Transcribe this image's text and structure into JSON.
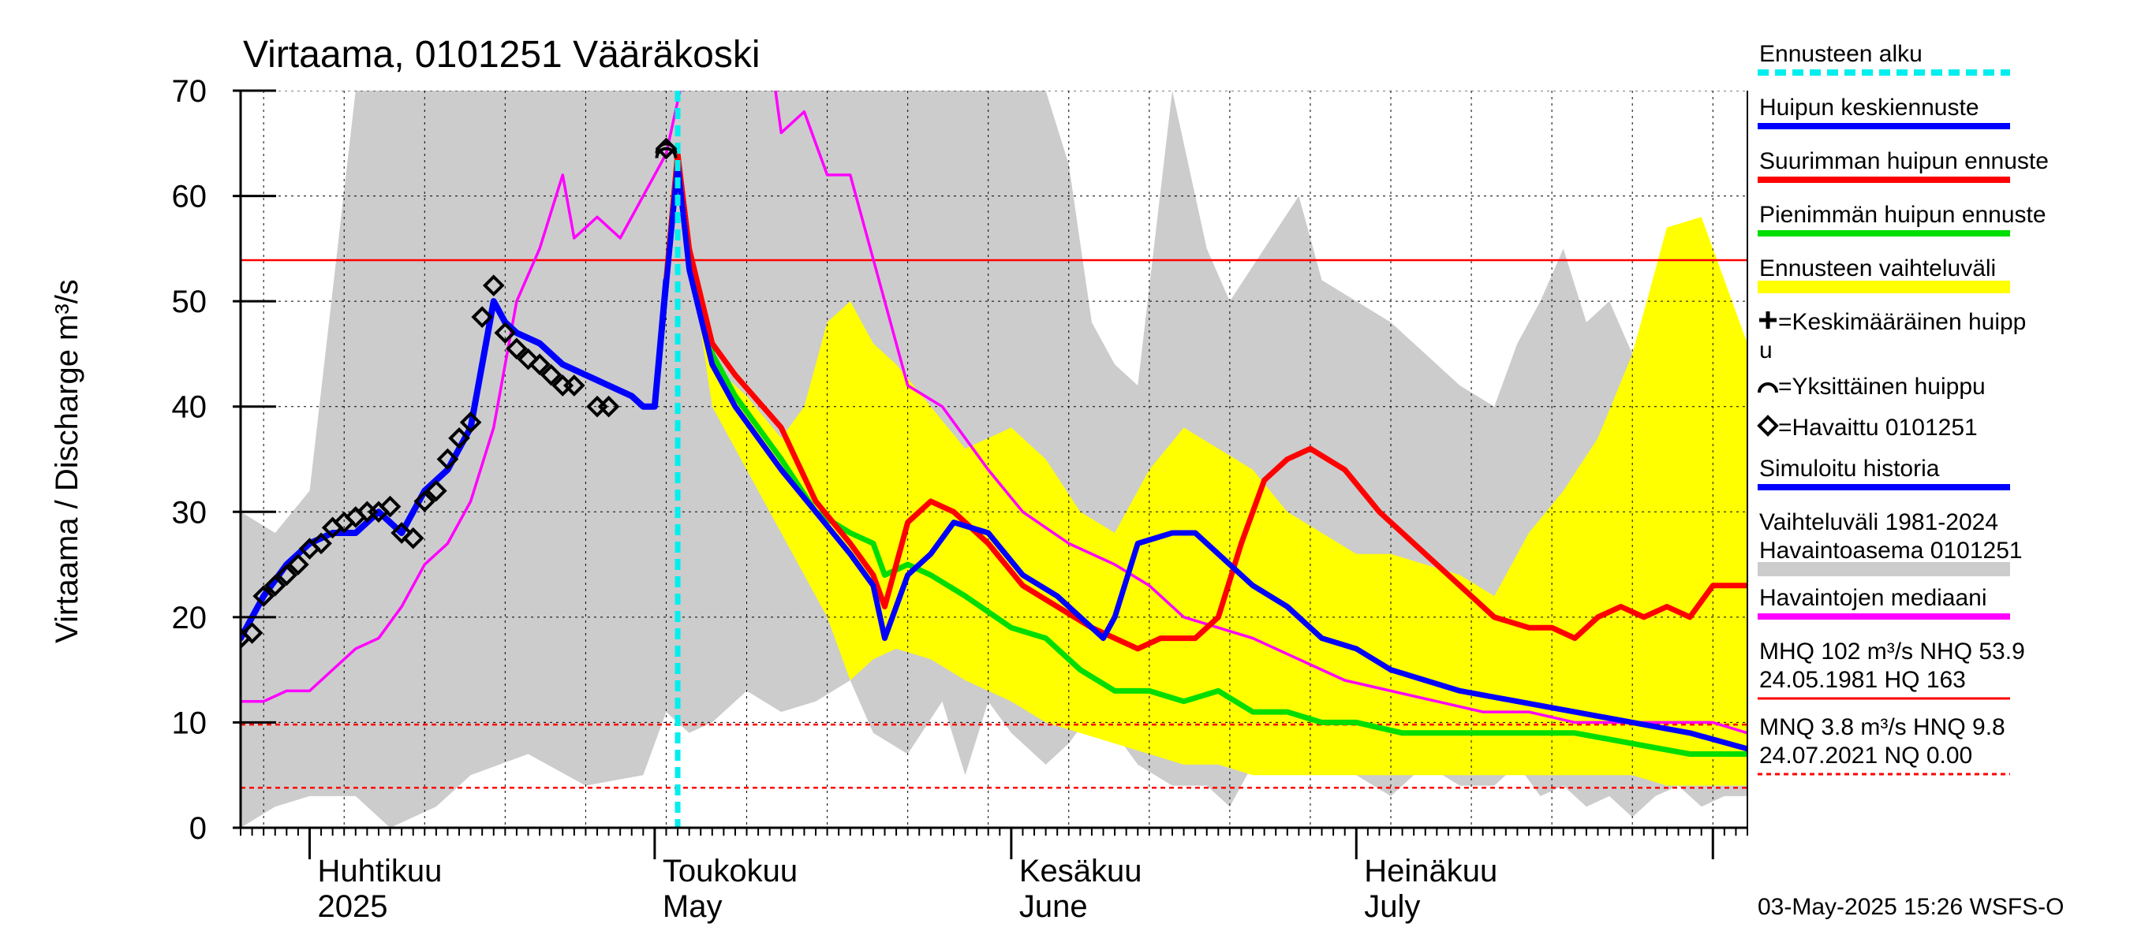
{
  "chart_data": {
    "type": "line",
    "title": "Virtaama, 0101251 Vääräkoski",
    "ylabel": "Virtaama / Discharge   m³/s",
    "ylim": [
      0,
      70
    ],
    "yticks": [
      0,
      10,
      20,
      30,
      40,
      50,
      60,
      70
    ],
    "xlim": [
      "2025-03-26",
      "2025-08-04"
    ],
    "month_labels": [
      {
        "date": "2025-04-01",
        "fi": "Huhtikuu",
        "en": "2025"
      },
      {
        "date": "2025-05-01",
        "fi": "Toukokuu",
        "en": "May"
      },
      {
        "date": "2025-06-01",
        "fi": "Kesäkuu",
        "en": "June"
      },
      {
        "date": "2025-07-01",
        "fi": "Heinäkuu",
        "en": "July"
      }
    ],
    "forecast_start": "2025-05-03",
    "reference_lines": [
      {
        "name": "NHQ",
        "value": 53.9,
        "style": "solid",
        "color": "#ff0000"
      },
      {
        "name": "HNQ",
        "value": 9.8,
        "style": "dashed",
        "color": "#ff0000"
      },
      {
        "name": "MNQ",
        "value": 3.8,
        "style": "dashed",
        "color": "#ff0000"
      },
      {
        "name": "NQ",
        "value": 0.0,
        "style": "dashed",
        "color": "#ff0000"
      }
    ],
    "historical_range": {
      "color": "#cccccc",
      "x": [
        "2025-03-26",
        "2025-03-29",
        "2025-04-01",
        "2025-04-05",
        "2025-04-08",
        "2025-04-10",
        "2025-04-12",
        "2025-04-15",
        "2025-04-20",
        "2025-04-25",
        "2025-04-30",
        "2025-05-02",
        "2025-05-04",
        "2025-05-06",
        "2025-05-09",
        "2025-05-12",
        "2025-05-15",
        "2025-05-18",
        "2025-05-20",
        "2025-05-23",
        "2025-05-26",
        "2025-05-28",
        "2025-05-30",
        "2025-06-01",
        "2025-06-04",
        "2025-06-06",
        "2025-06-08",
        "2025-06-10",
        "2025-06-12",
        "2025-06-15",
        "2025-06-18",
        "2025-06-20",
        "2025-06-23",
        "2025-06-26",
        "2025-06-28",
        "2025-07-01",
        "2025-07-04",
        "2025-07-07",
        "2025-07-10",
        "2025-07-13",
        "2025-07-15",
        "2025-07-17",
        "2025-07-19",
        "2025-07-21",
        "2025-07-23",
        "2025-07-25",
        "2025-07-27",
        "2025-07-29",
        "2025-07-31",
        "2025-08-02",
        "2025-08-04"
      ],
      "upper": [
        30,
        28,
        32,
        70,
        70,
        70,
        70,
        70,
        70,
        70,
        70,
        70,
        70,
        70,
        70,
        70,
        70,
        70,
        70,
        70,
        70,
        70,
        70,
        70,
        70,
        63,
        48,
        44,
        42,
        70,
        55,
        50,
        55,
        60,
        52,
        50,
        48,
        45,
        42,
        40,
        46,
        50,
        55,
        48,
        50,
        45,
        52,
        48,
        54,
        42,
        38
      ],
      "lower": [
        0,
        2,
        3,
        3,
        0,
        1,
        2,
        5,
        7,
        4,
        5,
        11,
        9,
        10,
        13,
        11,
        12,
        14,
        9,
        7,
        12,
        5,
        12,
        9,
        6,
        8,
        11,
        9,
        6,
        4,
        4,
        2,
        8,
        5,
        7,
        5,
        3,
        6,
        4,
        4,
        6,
        3,
        4,
        2,
        3,
        1,
        3,
        4,
        2,
        3,
        3
      ]
    },
    "series": [
      {
        "name": "Ennusteen vaihteluväli",
        "kind": "band",
        "color": "#ffff00",
        "x": [
          "2025-05-03",
          "2025-05-06",
          "2025-05-09",
          "2025-05-12",
          "2025-05-14",
          "2025-05-16",
          "2025-05-18",
          "2025-05-20",
          "2025-05-22",
          "2025-05-25",
          "2025-05-28",
          "2025-06-01",
          "2025-06-04",
          "2025-06-07",
          "2025-06-10",
          "2025-06-13",
          "2025-06-16",
          "2025-06-19",
          "2025-06-22",
          "2025-06-25",
          "2025-06-28",
          "2025-07-01",
          "2025-07-04",
          "2025-07-07",
          "2025-07-10",
          "2025-07-13",
          "2025-07-16",
          "2025-07-19",
          "2025-07-22",
          "2025-07-25",
          "2025-07-28",
          "2025-07-31",
          "2025-08-02",
          "2025-08-04"
        ],
        "upper": [
          62,
          44,
          41,
          37,
          40,
          48,
          50,
          46,
          44,
          40,
          36,
          38,
          35,
          30,
          28,
          34,
          38,
          36,
          34,
          30,
          28,
          26,
          26,
          25,
          24,
          22,
          28,
          32,
          37,
          45,
          57,
          58,
          52,
          46
        ],
        "lower": [
          62,
          40,
          34,
          28,
          24,
          20,
          14,
          16,
          17,
          16,
          14,
          12,
          10,
          9,
          8,
          7,
          6,
          6,
          5,
          5,
          5,
          5,
          5,
          5,
          5,
          5,
          5,
          5,
          5,
          5,
          4,
          4,
          4,
          4
        ]
      },
      {
        "name": "Suurimman huipun ennuste",
        "color": "#ff0000",
        "x": [
          "2025-04-30",
          "2025-05-01",
          "2025-05-03",
          "2025-05-04",
          "2025-05-06",
          "2025-05-08",
          "2025-05-12",
          "2025-05-15",
          "2025-05-18",
          "2025-05-20",
          "2025-05-21",
          "2025-05-23",
          "2025-05-25",
          "2025-05-27",
          "2025-05-30",
          "2025-06-02",
          "2025-06-05",
          "2025-06-08",
          "2025-06-10",
          "2025-06-12",
          "2025-06-14",
          "2025-06-17",
          "2025-06-19",
          "2025-06-21",
          "2025-06-23",
          "2025-06-25",
          "2025-06-27",
          "2025-06-30",
          "2025-07-03",
          "2025-07-06",
          "2025-07-10",
          "2025-07-13",
          "2025-07-16",
          "2025-07-18",
          "2025-07-20",
          "2025-07-22",
          "2025-07-24",
          "2025-07-26",
          "2025-07-28",
          "2025-07-30",
          "2025-08-01",
          "2025-08-04"
        ],
        "y": [
          40,
          40,
          64,
          55,
          46,
          43,
          38,
          31,
          27,
          24,
          21,
          29,
          31,
          30,
          27,
          23,
          21,
          19,
          18,
          17,
          18,
          18,
          20,
          27,
          33,
          35,
          36,
          34,
          30,
          27,
          23,
          20,
          19,
          19,
          18,
          20,
          21,
          20,
          21,
          20,
          23,
          23
        ]
      },
      {
        "name": "Pienimmän huipun ennuste",
        "color": "#00dd00",
        "x": [
          "2025-04-30",
          "2025-05-01",
          "2025-05-03",
          "2025-05-04",
          "2025-05-06",
          "2025-05-08",
          "2025-05-12",
          "2025-05-15",
          "2025-05-18",
          "2025-05-20",
          "2025-05-21",
          "2025-05-23",
          "2025-05-25",
          "2025-05-28",
          "2025-06-01",
          "2025-06-04",
          "2025-06-07",
          "2025-06-10",
          "2025-06-13",
          "2025-06-16",
          "2025-06-19",
          "2025-06-22",
          "2025-06-25",
          "2025-06-28",
          "2025-07-01",
          "2025-07-05",
          "2025-07-10",
          "2025-07-15",
          "2025-07-20",
          "2025-07-25",
          "2025-07-30",
          "2025-08-04"
        ],
        "y": [
          40,
          40,
          64,
          53,
          45,
          41,
          35,
          30,
          28,
          27,
          24,
          25,
          24,
          22,
          19,
          18,
          15,
          13,
          13,
          12,
          13,
          11,
          11,
          10,
          10,
          9,
          9,
          9,
          9,
          8,
          7,
          7
        ]
      },
      {
        "name": "Huipun keskiennuste",
        "color": "#0000ff",
        "x": [
          "2025-04-30",
          "2025-05-01",
          "2025-05-03",
          "2025-05-04",
          "2025-05-06",
          "2025-05-08",
          "2025-05-12",
          "2025-05-15",
          "2025-05-18",
          "2025-05-20",
          "2025-05-21",
          "2025-05-23",
          "2025-05-25",
          "2025-05-27",
          "2025-05-30",
          "2025-06-02",
          "2025-06-05",
          "2025-06-08",
          "2025-06-09",
          "2025-06-10",
          "2025-06-12",
          "2025-06-15",
          "2025-06-17",
          "2025-06-19",
          "2025-06-22",
          "2025-06-25",
          "2025-06-28",
          "2025-07-01",
          "2025-07-04",
          "2025-07-07",
          "2025-07-10",
          "2025-07-15",
          "2025-07-20",
          "2025-07-25",
          "2025-07-30",
          "2025-08-04"
        ],
        "y": [
          40,
          40,
          63,
          53,
          44,
          40,
          34,
          30,
          26,
          23,
          18,
          24,
          26,
          29,
          28,
          24,
          22,
          19,
          18,
          20,
          27,
          28,
          28,
          26,
          23,
          21,
          18,
          17,
          15,
          14,
          13,
          12,
          11,
          10,
          9,
          7.5
        ]
      },
      {
        "name": "Simuloitu historia",
        "color": "#0000ff",
        "x": [
          "2025-03-26",
          "2025-03-28",
          "2025-03-30",
          "2025-04-01",
          "2025-04-03",
          "2025-04-05",
          "2025-04-07",
          "2025-04-09",
          "2025-04-11",
          "2025-04-13",
          "2025-04-15",
          "2025-04-17",
          "2025-04-18",
          "2025-04-19",
          "2025-04-21",
          "2025-04-23",
          "2025-04-25",
          "2025-04-27",
          "2025-04-29",
          "2025-04-30",
          "2025-05-01",
          "2025-05-02"
        ],
        "y": [
          18,
          22,
          25,
          27,
          28,
          28,
          30,
          28,
          32,
          34,
          38,
          50,
          48,
          47,
          46,
          44,
          43,
          42,
          41,
          40,
          40,
          52
        ]
      },
      {
        "name": "Havaintojen mediaani",
        "color": "#ff00ff",
        "x": [
          "2025-03-26",
          "2025-03-28",
          "2025-03-30",
          "2025-04-01",
          "2025-04-03",
          "2025-04-05",
          "2025-04-07",
          "2025-04-09",
          "2025-04-11",
          "2025-04-13",
          "2025-04-15",
          "2025-04-17",
          "2025-04-19",
          "2025-04-21",
          "2025-04-23",
          "2025-04-24",
          "2025-04-26",
          "2025-04-28",
          "2025-04-30",
          "2025-05-02",
          "2025-05-04",
          "2025-05-11",
          "2025-05-12",
          "2025-05-14",
          "2025-05-16",
          "2025-05-18",
          "2025-05-20",
          "2025-05-23",
          "2025-05-26",
          "2025-05-28",
          "2025-05-30",
          "2025-06-02",
          "2025-06-06",
          "2025-06-10",
          "2025-06-13",
          "2025-06-16",
          "2025-06-19",
          "2025-06-22",
          "2025-06-26",
          "2025-06-30",
          "2025-07-04",
          "2025-07-08",
          "2025-07-12",
          "2025-07-16",
          "2025-07-20",
          "2025-07-24",
          "2025-07-28",
          "2025-08-01",
          "2025-08-04"
        ],
        "y": [
          12,
          12,
          13,
          13,
          15,
          17,
          18,
          21,
          25,
          27,
          31,
          38,
          50,
          55,
          62,
          56,
          58,
          56,
          60,
          64,
          74,
          74,
          66,
          68,
          62,
          62,
          54,
          42,
          40,
          37,
          34,
          30,
          27,
          25,
          23,
          20,
          19,
          18,
          16,
          14,
          13,
          12,
          11,
          11,
          10,
          10,
          10,
          10,
          9
        ]
      }
    ],
    "observed": {
      "name": "Havaittu 0101251",
      "x": [
        "2025-03-26",
        "2025-03-27",
        "2025-03-28",
        "2025-03-29",
        "2025-03-30",
        "2025-03-31",
        "2025-04-01",
        "2025-04-02",
        "2025-04-03",
        "2025-04-04",
        "2025-04-05",
        "2025-04-06",
        "2025-04-07",
        "2025-04-08",
        "2025-04-09",
        "2025-04-10",
        "2025-04-11",
        "2025-04-12",
        "2025-04-13",
        "2025-04-14",
        "2025-04-15",
        "2025-04-16",
        "2025-04-17",
        "2025-04-18",
        "2025-04-19",
        "2025-04-20",
        "2025-04-21",
        "2025-04-22",
        "2025-04-23",
        "2025-04-24",
        "2025-04-26",
        "2025-04-27",
        "2025-05-02"
      ],
      "y": [
        18,
        18.5,
        22,
        23,
        24,
        25,
        26.5,
        27,
        28.5,
        29,
        29.5,
        30,
        30,
        30.5,
        28,
        27.5,
        31,
        32,
        35,
        37,
        38.5,
        48.5,
        51.5,
        47,
        45.5,
        44.5,
        44,
        43,
        42,
        42,
        40,
        40,
        64.5
      ]
    },
    "single_peak": {
      "name": "Yksittäinen huippu",
      "x": "2025-05-02",
      "y": 64.5
    },
    "legend": {
      "placement": "right",
      "entries": [
        {
          "label": "Ennusteen alku",
          "color": "#00eeee",
          "kind": "dashed"
        },
        {
          "label": "Huipun keskiennuste",
          "color": "#0000ff",
          "kind": "line"
        },
        {
          "label": "Suurimman huipun ennuste",
          "color": "#ff0000",
          "kind": "line"
        },
        {
          "label": "Pienimmän huipun ennuste",
          "color": "#00dd00",
          "kind": "line"
        },
        {
          "label": "Ennusteen vaihteluväli",
          "color": "#ffff00",
          "kind": "thick"
        },
        {
          "label": "=Keskimääräinen huipp",
          "label2": "u",
          "kind": "plus"
        },
        {
          "label": "=Yksittäinen huippu",
          "kind": "arc"
        },
        {
          "label": "=Havaittu 0101251",
          "kind": "diamond"
        },
        {
          "label": "Simuloitu historia",
          "color": "#0000ff",
          "kind": "line"
        },
        {
          "label": "Vaihteluväli 1981-2024",
          "label2": " Havaintoasema 0101251",
          "color": "#cccccc",
          "kind": "thick2"
        },
        {
          "label": "Havaintojen mediaani",
          "color": "#ff00ff",
          "kind": "line"
        },
        {
          "label": "MHQ  102 m³/s NHQ 53.9",
          "label2": "24.05.1981 HQ  163",
          "color": "#ff0000",
          "kind": "solid-thin"
        },
        {
          "label": "MNQ  3.8 m³/s HNQ  9.8",
          "label2": "24.07.2021 NQ 0.00",
          "color": "#ff0000",
          "kind": "dashed-thin"
        }
      ]
    },
    "footer": "03-May-2025 15:26 WSFS-O"
  }
}
